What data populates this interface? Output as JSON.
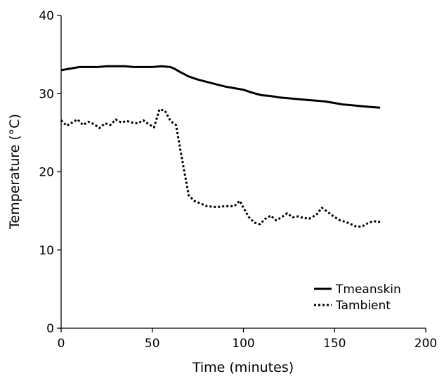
{
  "chart_data": {
    "type": "line",
    "title": "",
    "xlabel": "Time (minutes)",
    "ylabel": "Temperature (°C)",
    "xlim": [
      0,
      200
    ],
    "ylim": [
      0,
      40
    ],
    "x_ticks": [
      "0",
      "50",
      "100",
      "150",
      "200"
    ],
    "y_ticks": [
      "0",
      "10",
      "20",
      "30",
      "40"
    ],
    "grid": false,
    "legend_position": "bottom-right",
    "series": [
      {
        "name": "Tmeanskin",
        "style": "solid",
        "color": "#000000",
        "x": [
          0,
          5,
          10,
          15,
          20,
          25,
          30,
          35,
          40,
          45,
          50,
          55,
          60,
          62,
          65,
          70,
          75,
          80,
          85,
          90,
          95,
          100,
          105,
          110,
          115,
          120,
          125,
          130,
          135,
          140,
          145,
          150,
          155,
          160,
          165,
          170,
          175
        ],
        "y": [
          33.0,
          33.2,
          33.4,
          33.4,
          33.4,
          33.5,
          33.5,
          33.5,
          33.4,
          33.4,
          33.4,
          33.5,
          33.4,
          33.2,
          32.8,
          32.2,
          31.8,
          31.5,
          31.2,
          30.9,
          30.7,
          30.5,
          30.1,
          29.8,
          29.7,
          29.5,
          29.4,
          29.3,
          29.2,
          29.1,
          29.0,
          28.8,
          28.6,
          28.5,
          28.4,
          28.3,
          28.2
        ]
      },
      {
        "name": "Tambient",
        "style": "dotted",
        "color": "#000000",
        "x": [
          0,
          3,
          6,
          9,
          12,
          15,
          18,
          21,
          24,
          27,
          30,
          33,
          36,
          39,
          42,
          45,
          48,
          51,
          54,
          57,
          60,
          63,
          66,
          68,
          70,
          73,
          76,
          80,
          85,
          90,
          95,
          98,
          100,
          103,
          106,
          109,
          112,
          115,
          118,
          121,
          124,
          127,
          130,
          133,
          136,
          140,
          143,
          146,
          150,
          153,
          156,
          159,
          162,
          165,
          168,
          171,
          175
        ],
        "y": [
          26.6,
          25.9,
          26.3,
          26.7,
          26.0,
          26.4,
          26.1,
          25.6,
          26.2,
          26.0,
          26.7,
          26.3,
          26.5,
          26.3,
          26.2,
          26.6,
          26.1,
          25.7,
          28.0,
          27.8,
          26.5,
          26.0,
          22.0,
          19.5,
          17.0,
          16.3,
          16.0,
          15.6,
          15.5,
          15.6,
          15.6,
          16.3,
          15.4,
          14.2,
          13.5,
          13.3,
          14.0,
          14.4,
          13.8,
          14.2,
          14.7,
          14.2,
          14.3,
          14.1,
          14.0,
          14.5,
          15.4,
          14.9,
          14.2,
          13.8,
          13.6,
          13.3,
          13.0,
          13.0,
          13.4,
          13.7,
          13.6
        ]
      }
    ]
  }
}
